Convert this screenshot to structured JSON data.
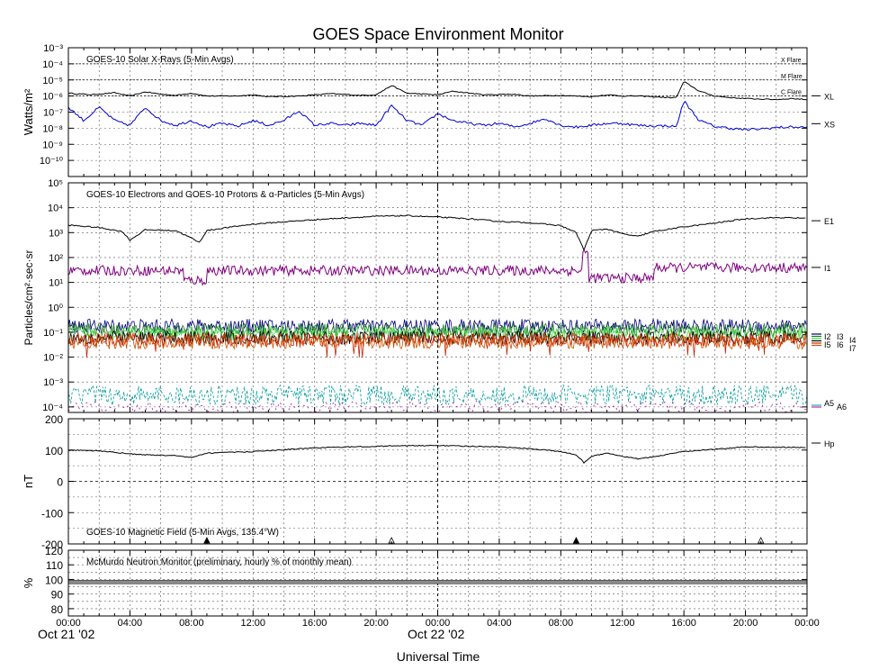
{
  "title": "GOES Space Environment Monitor",
  "x_axis": {
    "label": "Universal Time",
    "ticks": [
      "00:00",
      "04:00",
      "08:00",
      "12:00",
      "16:00",
      "20:00",
      "00:00",
      "04:00",
      "08:00",
      "12:00",
      "16:00",
      "20:00",
      "00:00"
    ],
    "dates": [
      "Oct 21 '02",
      "Oct 22 '02"
    ],
    "range_hours": [
      0,
      48
    ],
    "grid": true
  },
  "colors": {
    "xl": "#000000",
    "xs": "#0000cc",
    "e1": "#000000",
    "i1": "#800080",
    "i2": "#00007a",
    "i3": "#1f7a1f",
    "i4": "#44dd44",
    "i5": "#000000",
    "i6": "#cc2200",
    "i7": "#d05000",
    "a5": "#009999",
    "a6": "#aa00aa",
    "hp": "#000000",
    "neutron": "#8a8a8a"
  },
  "chart_data": [
    {
      "type": "line",
      "panel": "xray",
      "annotation": "GOES-10 Solar X-Rays (5-Min Avgs)",
      "ylabel": "Watts/m²",
      "yscale": "log",
      "ylim": [
        1e-11,
        0.001
      ],
      "ytick_labels": [
        "10⁻³",
        "10⁻⁴",
        "10⁻⁵",
        "10⁻⁶",
        "10⁻⁷",
        "10⁻⁸",
        "10⁻⁹",
        "10⁻¹⁰"
      ],
      "flare_levels": [
        {
          "label": "X Flare",
          "value": 0.0001
        },
        {
          "label": "M Flare",
          "value": 1e-05
        },
        {
          "label": "C Flare",
          "value": 1e-06
        }
      ],
      "series": [
        {
          "name": "XL",
          "x": [
            0,
            1.5,
            3,
            4,
            5,
            6,
            7,
            8,
            9,
            11,
            12,
            13,
            15,
            17,
            19,
            20,
            21,
            22,
            24,
            25,
            27,
            29,
            30,
            32,
            34,
            35,
            36,
            37,
            38,
            39,
            39.5,
            40,
            41,
            42,
            43,
            44,
            45,
            46,
            47,
            48
          ],
          "y": [
            1.5e-06,
            1.2e-06,
            1.6e-06,
            1e-06,
            1.8e-06,
            1.3e-06,
            1.1e-06,
            1.5e-06,
            1e-06,
            1e-06,
            1.2e-06,
            9e-07,
            1e-06,
            1.4e-06,
            1.1e-06,
            1.2e-06,
            4.5e-06,
            1.5e-06,
            1.2e-06,
            2e-06,
            1.2e-06,
            1.3e-06,
            1e-06,
            1.1e-06,
            9e-07,
            1.2e-06,
            1e-06,
            1e-06,
            9e-07,
            8e-07,
            8e-07,
            8e-06,
            2e-06,
            1e-06,
            8e-07,
            7e-07,
            6.5e-07,
            6e-07,
            7e-07,
            6e-07
          ]
        },
        {
          "name": "XS",
          "x": [
            0,
            1,
            2,
            3,
            4,
            5,
            6,
            7,
            8,
            9,
            10,
            11,
            12,
            13,
            14,
            15,
            16,
            17,
            18,
            19,
            20,
            21,
            22,
            23,
            24,
            25,
            26,
            27,
            28,
            29,
            30,
            31,
            32,
            33,
            34,
            35,
            36,
            37,
            38,
            39,
            39.5,
            40,
            41,
            42,
            43,
            44,
            45,
            46,
            47,
            48
          ],
          "y": [
            2e-07,
            3e-08,
            2e-07,
            3e-08,
            1.5e-08,
            2e-07,
            3e-08,
            1.5e-08,
            3e-08,
            1.2e-08,
            2e-08,
            1.3e-08,
            3e-08,
            1.5e-08,
            3e-08,
            1.2e-07,
            1.5e-08,
            2e-08,
            1.5e-08,
            2e-08,
            1.5e-08,
            2.5e-07,
            3e-08,
            1.5e-08,
            8e-08,
            3e-08,
            2e-08,
            1.5e-08,
            2e-08,
            1.2e-08,
            2e-08,
            4e-08,
            1.5e-08,
            1.2e-08,
            1.5e-08,
            2e-08,
            2e-08,
            1.5e-08,
            1.4e-08,
            1.4e-08,
            1.2e-08,
            5e-07,
            3e-08,
            1.3e-08,
            1e-08,
            8e-09,
            9e-09,
            1.1e-08,
            1.2e-08,
            1.1e-08
          ]
        }
      ],
      "right_labels": [
        "XL",
        "XS"
      ]
    },
    {
      "type": "line",
      "panel": "particles",
      "annotation": "GOES-10 Electrons and GOES-10 Protons & α-Particles (5-Min Avgs)",
      "ylabel": "Particles/cm²·sec·sr",
      "yscale": "log",
      "ylim": [
        6e-05,
        100000.0
      ],
      "ytick_labels": [
        "10⁵",
        "10⁴",
        "10³",
        "10²",
        "10¹",
        "10⁰",
        "10⁻¹",
        "10⁻²",
        "10⁻³",
        "10⁻⁴"
      ],
      "series": [
        {
          "name": "E1",
          "x": [
            0,
            2,
            3.5,
            4,
            5,
            7,
            8,
            8.5,
            9,
            10,
            12,
            14,
            16,
            18,
            20,
            22,
            24,
            26,
            28,
            30,
            32,
            33,
            33.5,
            34,
            35,
            36,
            37,
            38,
            40,
            42,
            44,
            46,
            48
          ],
          "y": [
            2000,
            1600,
            1100,
            500,
            1300,
            1200,
            600,
            400,
            1200,
            1500,
            2200,
            2700,
            3300,
            3900,
            4500,
            4800,
            4200,
            3600,
            2800,
            2500,
            1900,
            1000,
            200,
            1200,
            1400,
            900,
            700,
            1100,
            1700,
            2400,
            3600,
            4000,
            3800
          ]
        },
        {
          "name": "I1",
          "base": 30,
          "base_late": 15,
          "break_hour": 33.5,
          "spike_value": 150
        },
        {
          "name": "I2",
          "base": 0.18
        },
        {
          "name": "I3",
          "base": 0.12
        },
        {
          "name": "I4",
          "base": 0.09
        },
        {
          "name": "I5",
          "base": 0.06
        },
        {
          "name": "I6",
          "base": 0.05
        },
        {
          "name": "I7",
          "base": 0.04
        },
        {
          "name": "A5",
          "base": 0.0003
        },
        {
          "name": "A6",
          "base": 8e-05
        }
      ],
      "right_labels": [
        "E1",
        "I1",
        "I2",
        "I3",
        "I4",
        "I5",
        "I6",
        "I7",
        "A5",
        "A6"
      ]
    },
    {
      "type": "line",
      "panel": "magnetic",
      "annotation": "GOES-10 Magnetic Field (5-Min Avgs, 135.4°W)",
      "ylabel": "nT",
      "ylim": [
        -200,
        200
      ],
      "ytick_labels": [
        "200",
        "100",
        "0",
        "-100",
        "-200"
      ],
      "series": [
        {
          "name": "Hp",
          "x": [
            0,
            2,
            4,
            5,
            7,
            8,
            9,
            12,
            16,
            20,
            24,
            26,
            28,
            30,
            31,
            32,
            33,
            33.5,
            34,
            35,
            36,
            37,
            38,
            40,
            44,
            48
          ],
          "y": [
            100,
            97,
            88,
            85,
            82,
            76,
            90,
            95,
            107,
            112,
            115,
            112,
            110,
            104,
            100,
            95,
            85,
            60,
            80,
            90,
            80,
            72,
            78,
            95,
            110,
            108
          ]
        }
      ],
      "markers": [
        {
          "hour": 9,
          "style": "filled"
        },
        {
          "hour": 21,
          "style": "open"
        },
        {
          "hour": 33,
          "style": "filled"
        },
        {
          "hour": 45,
          "style": "open"
        }
      ],
      "right_labels": [
        "Hp"
      ]
    },
    {
      "type": "area",
      "panel": "neutron",
      "annotation": "McMurdo Neutron Monitor (preliminary, hourly % of monthly mean)",
      "ylabel": "%",
      "ylim": [
        75,
        120
      ],
      "ytick_labels": [
        "120",
        "110",
        "100",
        "90",
        "80"
      ],
      "series": [
        {
          "name": "Neutron",
          "low": 97,
          "high": 99.5
        }
      ]
    }
  ]
}
